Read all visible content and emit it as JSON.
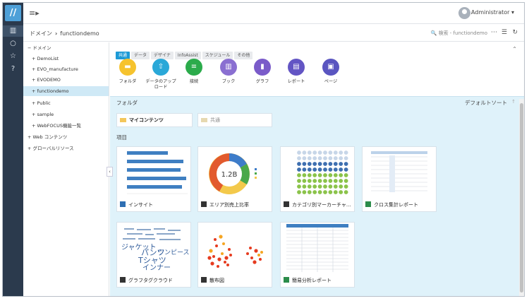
{
  "app": {
    "logo_glyph": "//"
  },
  "rail": {
    "items": [
      {
        "icon": "bar-chart-icon",
        "glyph": "▥"
      },
      {
        "icon": "circle-icon",
        "glyph": "○"
      },
      {
        "icon": "star-icon",
        "glyph": "☆"
      },
      {
        "icon": "help-icon",
        "glyph": "?"
      }
    ]
  },
  "topbar": {
    "menu_glyph": "≡▸",
    "user": "Administrator ▾"
  },
  "breadcrumb": {
    "root": "ドメイン",
    "separator": "›",
    "current": "functiondemo"
  },
  "search": {
    "placeholder": "🔍 検索 - functiondemo"
  },
  "toolbar": {
    "more": "⋯",
    "list": "☰",
    "refresh": "↻"
  },
  "tree": {
    "root": "− ドメイン",
    "items": [
      "+ DemoList",
      "+ EVO_manufacture",
      "+ EVODEMO",
      "+ functiondemo",
      "+ Public",
      "+ sample",
      "+ WebFOCUS機能一覧"
    ],
    "web": "+ Web コンテンツ",
    "global": "+ グローバルリソース"
  },
  "collapse_glyph": "‹",
  "tabs": [
    "共通",
    "データ",
    "デザイナ",
    "InfoAssist",
    "スケジュール",
    "その他"
  ],
  "tab_chevron": "⌃",
  "tiles": [
    {
      "label": "フォルダ",
      "color": "#f6c32e",
      "glyph": "▬"
    },
    {
      "label": "データのアップロード",
      "color": "#2aa8d8",
      "glyph": "⇧"
    },
    {
      "label": "接続",
      "color": "#2bab4b",
      "glyph": "≡"
    },
    {
      "label": "ブック",
      "color": "#8a6fd1",
      "glyph": "▥"
    },
    {
      "label": "グラフ",
      "color": "#7a5bc9",
      "glyph": "▮"
    },
    {
      "label": "レポート",
      "color": "#6355c4",
      "glyph": "▤"
    },
    {
      "label": "ページ",
      "color": "#5a55c0",
      "glyph": "▣"
    }
  ],
  "workspace": {
    "folders_title": "フォルダ",
    "sort": "デフォルトソート",
    "sort_icon": "↑",
    "items_title": "項目",
    "folders": [
      {
        "label": "マイコンテンツ"
      },
      {
        "label": "共通"
      }
    ],
    "cards": [
      {
        "label": "インサイト"
      },
      {
        "label": "エリア別売上比率"
      },
      {
        "label": "カテゴリ別マーカーチャ..."
      },
      {
        "label": "クロス集計レポート"
      },
      {
        "label": "グラフタグクラウド"
      },
      {
        "label": "散布図"
      },
      {
        "label": "簡易分析レポート"
      }
    ],
    "donut_center": "1.2B",
    "cloud_words": [
      "ジャケット",
      "パンツ",
      "ワンピース",
      "Tシャツ",
      "インナー"
    ]
  }
}
